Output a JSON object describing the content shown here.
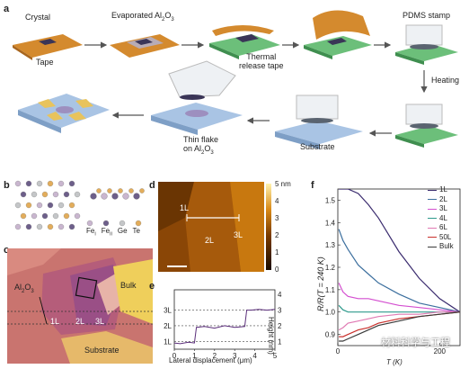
{
  "figure": {
    "panels": {
      "a": "a",
      "b": "b",
      "c": "c",
      "d": "d",
      "e": "e",
      "f": "f"
    },
    "panel_a": {
      "crystal": "Crystal",
      "tape": "Tape",
      "evaporated": "Evaporated Al",
      "evaporated_sub": "2",
      "evaporated_o": "O",
      "evaporated_sub2": "3",
      "thermal_tape": "Thermal\nrelease tape",
      "pdms": "PDMS stamp",
      "heating": "Heating",
      "substrate": "Substrate",
      "thin_flake": "Thin flake",
      "on_al2o3": "on Al",
      "on_sub": "2",
      "on_o": "O",
      "on_sub2": "3"
    },
    "panel_b": {
      "legend": [
        "Fe",
        "Fe",
        "Ge",
        "Te"
      ],
      "legend_sub": [
        "I",
        "II",
        "",
        ""
      ],
      "legend_colors": [
        "#c9b6cf",
        "#6d5f8a",
        "#c4c6c8",
        "#e3ad5b"
      ]
    },
    "panel_c": {
      "al2o3": "Al",
      "al2o3_sub": "2",
      "al2o3_o": "O",
      "al2o3_sub2": "3",
      "labels": [
        "1L",
        "2L",
        "3L",
        "Bulk",
        "Substrate"
      ]
    },
    "panel_d": {
      "labels": [
        "1L",
        "2L",
        "3L"
      ],
      "colorbar_ticks": [
        "5 nm",
        "4",
        "3",
        "2",
        "1",
        "0"
      ]
    },
    "panel_e": {
      "xlabel": "Lateral displacement (μm)",
      "ylabel": "Height (nm)",
      "x_ticks": [
        "0",
        "1",
        "2",
        "3",
        "4",
        "5"
      ],
      "y_ticks_right": [
        "4",
        "3",
        "2",
        "1"
      ],
      "layer_marks": [
        "3L",
        "2L",
        "1L"
      ]
    },
    "panel_f": {
      "ylabel": "R/R(T = 240 K)",
      "xlabel": "T (K)",
      "y_ticks": [
        "1.5",
        "1.4",
        "1.3",
        "1.2",
        "1.1",
        "1.0",
        "0.9"
      ],
      "x_ticks": [
        "0",
        "200"
      ],
      "legend": [
        "1L",
        "2L",
        "3L",
        "4L",
        "6L",
        "50L",
        "Bulk"
      ],
      "colors": [
        "#3a2b6e",
        "#3c6f9e",
        "#d44fd0",
        "#2e9a8c",
        "#e07ab3",
        "#c9302c",
        "#3b3b3b"
      ]
    },
    "watermark": "材料科学与工程"
  },
  "chart_data": {
    "type": "line",
    "title": "",
    "xlabel": "T (K)",
    "ylabel": "R/R(T = 240 K)",
    "xlim": [
      0,
      240
    ],
    "ylim": [
      0.85,
      1.55
    ],
    "series": [
      {
        "name": "1L",
        "x": [
          2,
          20,
          40,
          60,
          80,
          120,
          160,
          200,
          240
        ],
        "values": [
          1.55,
          1.55,
          1.53,
          1.48,
          1.42,
          1.27,
          1.15,
          1.06,
          1.0
        ]
      },
      {
        "name": "2L",
        "x": [
          2,
          10,
          20,
          40,
          60,
          80,
          120,
          160,
          200,
          240
        ],
        "values": [
          1.37,
          1.32,
          1.28,
          1.21,
          1.17,
          1.13,
          1.08,
          1.04,
          1.02,
          1.0
        ]
      },
      {
        "name": "3L",
        "x": [
          2,
          10,
          20,
          40,
          60,
          80,
          120,
          160,
          200,
          240
        ],
        "values": [
          1.13,
          1.09,
          1.07,
          1.06,
          1.06,
          1.05,
          1.03,
          1.02,
          1.01,
          1.0
        ]
      },
      {
        "name": "4L",
        "x": [
          2,
          10,
          20,
          40,
          60,
          80,
          120,
          160,
          200,
          240
        ],
        "values": [
          1.03,
          1.01,
          1.0,
          1.0,
          1.0,
          1.0,
          1.0,
          1.0,
          1.0,
          1.0
        ]
      },
      {
        "name": "6L",
        "x": [
          2,
          10,
          20,
          40,
          60,
          80,
          120,
          160,
          200,
          240
        ],
        "values": [
          0.92,
          0.93,
          0.95,
          0.96,
          0.97,
          0.98,
          0.99,
          0.99,
          1.0,
          1.0
        ]
      },
      {
        "name": "50L",
        "x": [
          2,
          10,
          20,
          40,
          60,
          80,
          120,
          160,
          200,
          240
        ],
        "values": [
          0.89,
          0.89,
          0.9,
          0.92,
          0.93,
          0.95,
          0.97,
          0.98,
          0.99,
          1.0
        ]
      },
      {
        "name": "Bulk",
        "x": [
          2,
          10,
          20,
          40,
          60,
          80,
          120,
          160,
          200,
          240
        ],
        "values": [
          0.87,
          0.87,
          0.88,
          0.9,
          0.92,
          0.94,
          0.96,
          0.98,
          0.99,
          1.0
        ]
      }
    ]
  },
  "height_profile": {
    "x": [
      0,
      0.3,
      0.7,
      1.0,
      1.1,
      1.5,
      2.0,
      2.5,
      3.0,
      3.5,
      3.6,
      3.8,
      4.2,
      4.6,
      5.0
    ],
    "values": [
      0.9,
      0.85,
      0.95,
      0.9,
      1.9,
      1.95,
      1.85,
      2.0,
      1.9,
      1.95,
      3.0,
      3.0,
      3.05,
      3.0,
      3.05
    ]
  }
}
